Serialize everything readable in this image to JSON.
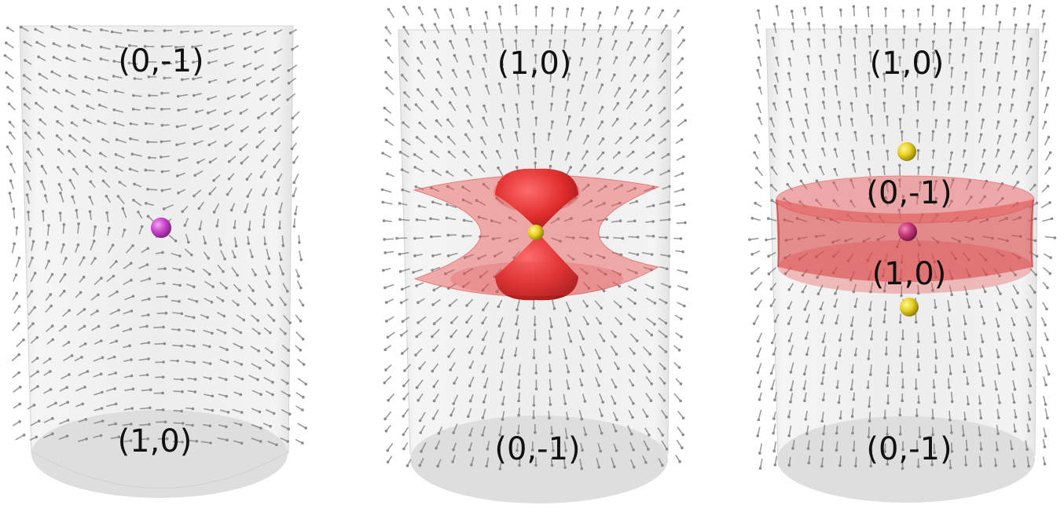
{
  "panels": [
    {
      "id": "left",
      "labels": {
        "top": "(0,-1)",
        "bottom": "(1,0)"
      },
      "defects": [
        {
          "color": "#cc44cc",
          "role": "center"
        }
      ],
      "isosurface": "none"
    },
    {
      "id": "middle",
      "labels": {
        "top": "(1,0)",
        "bottom": "(0,-1)"
      },
      "defects": [
        {
          "color": "#e0c020",
          "role": "center"
        }
      ],
      "isosurface": "hyperboloid-with-lobes"
    },
    {
      "id": "right",
      "labels": {
        "top": "(1,0)",
        "inner_top": "(0,-1)",
        "inner_bottom": "(1,0)",
        "bottom": "(0,-1)"
      },
      "defects": [
        {
          "color": "#e8d020",
          "role": "upper"
        },
        {
          "color": "#c8387a",
          "role": "center"
        },
        {
          "color": "#e8d020",
          "role": "lower"
        }
      ],
      "isosurface": "band"
    }
  ],
  "colors": {
    "cylinder": "#dcdcdc",
    "arrow": "#7a7a7a",
    "isosurface": "#e04848"
  }
}
